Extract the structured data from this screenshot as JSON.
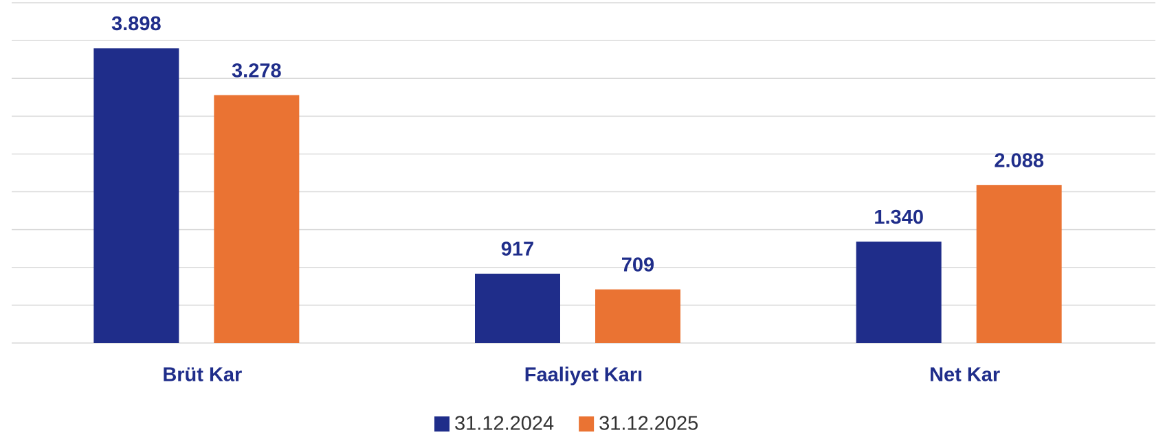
{
  "chart_data": {
    "type": "bar",
    "categories": [
      "Brüt Kar",
      "Faaliyet Karı",
      "Net Kar"
    ],
    "series": [
      {
        "name": "31.12.2024",
        "color": "#1f2d8a",
        "values": [
          3898,
          917,
          1340
        ],
        "value_labels": [
          "3.898",
          "917",
          "1.340"
        ]
      },
      {
        "name": "31.12.2025",
        "color": "#ea7333",
        "values": [
          3278,
          709,
          2088
        ],
        "value_labels": [
          "3.278",
          "709",
          "2.088"
        ]
      }
    ],
    "ylim": [
      0,
      4500
    ],
    "yticks": [
      0,
      500,
      1000,
      1500,
      2000,
      2500,
      3000,
      3500,
      4000,
      4500
    ],
    "grid": true,
    "legend": "bottom"
  }
}
